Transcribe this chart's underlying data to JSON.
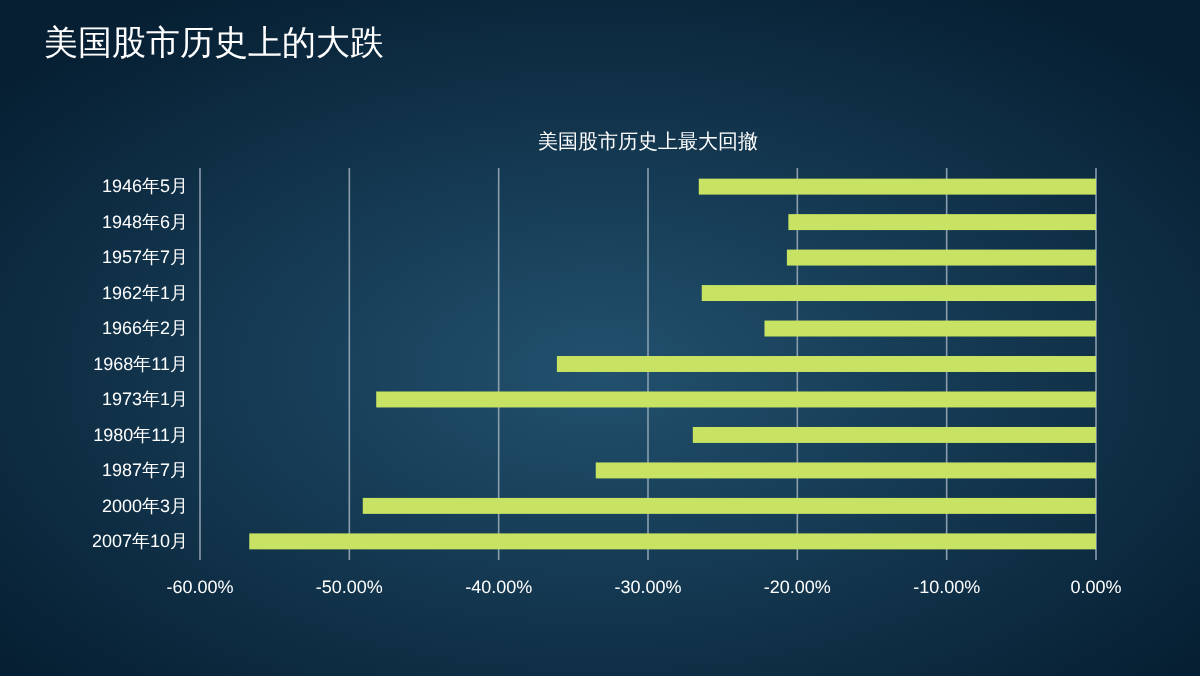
{
  "chart_data": {
    "type": "bar",
    "orientation": "horizontal",
    "title": "美国股市历史上的大跌",
    "subtitle": "美国股市历史上最大回撤",
    "categories": [
      "1946年5月",
      "1948年6月",
      "1957年7月",
      "1962年1月",
      "1966年2月",
      "1968年11月",
      "1973年1月",
      "1980年11月",
      "1987年7月",
      "2000年3月",
      "2007年10月"
    ],
    "values": [
      -26.6,
      -20.6,
      -20.7,
      -26.4,
      -22.2,
      -36.1,
      -48.2,
      -27.0,
      -33.5,
      -49.1,
      -56.7
    ],
    "color": "#c8e264",
    "xlim": [
      -60,
      0
    ],
    "xticks": [
      {
        "value": -60,
        "label": "-60.00%"
      },
      {
        "value": -50,
        "label": "-50.00%"
      },
      {
        "value": -40,
        "label": "-40.00%"
      },
      {
        "value": -30,
        "label": "-30.00%"
      },
      {
        "value": -20,
        "label": "-20.00%"
      },
      {
        "value": -10,
        "label": "-10.00%"
      },
      {
        "value": 0,
        "label": "0.00%"
      }
    ],
    "grid": "x"
  }
}
